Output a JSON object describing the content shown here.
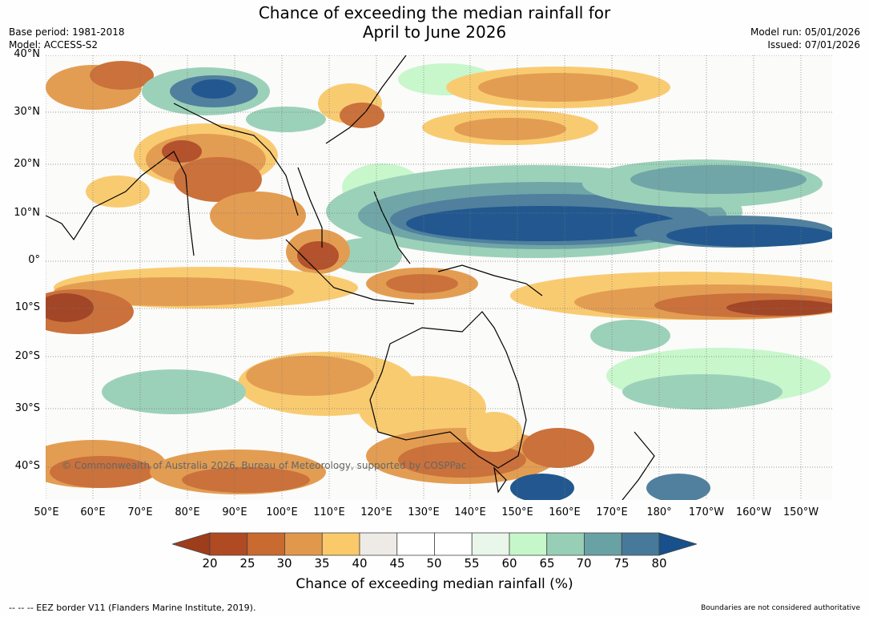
{
  "title_line1": "Chance of exceeding the median rainfall for",
  "title_line2": "April to June 2026",
  "base_period": "Base period: 1981-2018",
  "model": "Model: ACCESS-S2",
  "model_run": "Model run: 05/01/2026",
  "issued": "Issued: 07/01/2026",
  "copyright": "© Commonwealth of Australia 2026, Bureau of Meteorology, supported by COSPPac",
  "lat_labels": [
    "40°N",
    "30°N",
    "20°N",
    "10°N",
    "0°",
    "10°S",
    "20°S",
    "30°S",
    "40°S"
  ],
  "lon_labels": [
    "50°E",
    "60°E",
    "70°E",
    "80°E",
    "90°E",
    "100°E",
    "110°E",
    "120°E",
    "130°E",
    "140°E",
    "150°E",
    "160°E",
    "170°E",
    "180°",
    "170°W",
    "160°W",
    "150°W"
  ],
  "colorbar": {
    "label": "Chance of exceeding median rainfall (%)",
    "ticks": [
      "20",
      "25",
      "30",
      "35",
      "40",
      "45",
      "50",
      "55",
      "60",
      "65",
      "70",
      "75",
      "80"
    ],
    "colors": [
      "#9e3d1c",
      "#b04a22",
      "#c96a31",
      "#e2984a",
      "#f9c96a",
      "#eeebe6",
      "#ffffff",
      "#ffffff",
      "#e9f6ea",
      "#c6f7ca",
      "#97cfb6",
      "#69a2a4",
      "#477a9a",
      "#17508a"
    ]
  },
  "footnote_left": "--  --  -- EEZ border V11 (Flanders Marine Institute, 2019).",
  "footnote_right": "Boundaries are not considered authoritative"
}
